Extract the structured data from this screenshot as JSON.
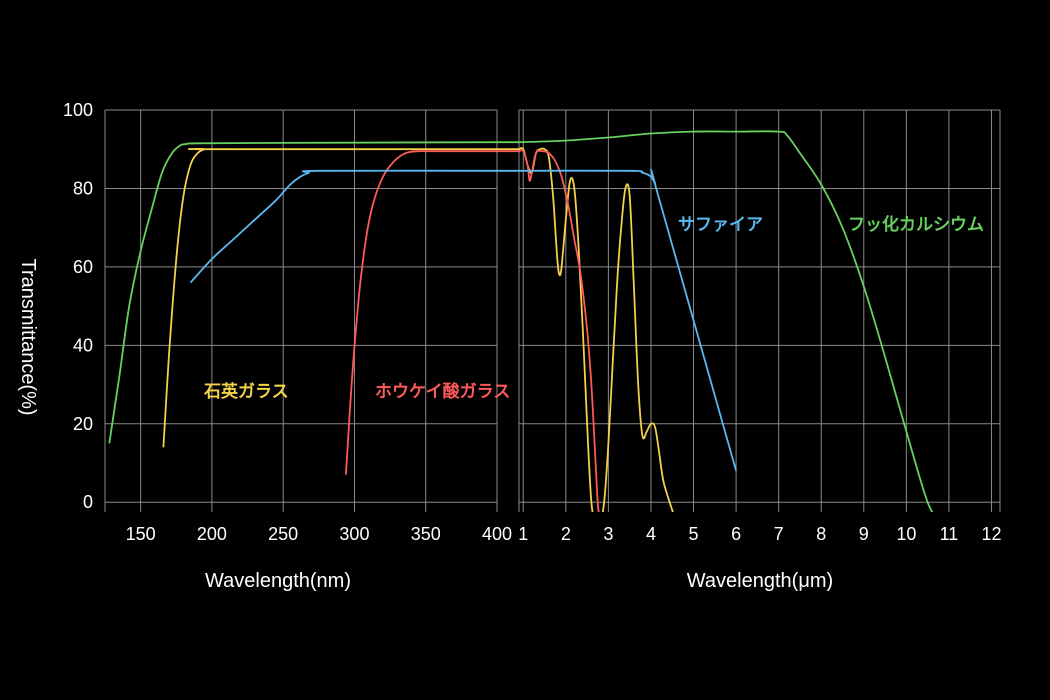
{
  "colors": {
    "background": "#000000",
    "grid": "#8a8a8a",
    "text": "#ffffff",
    "quartz": "#f2d24b",
    "borosilicate": "#ff5a5a",
    "sapphire": "#5ab8f0",
    "calcium_fluoride": "#66d15e"
  },
  "chart_data": [
    {
      "type": "line",
      "panel": "left",
      "xlabel": "Wavelength(nm)",
      "ylabel": "Transmittance(%)",
      "xlim": [
        125,
        400
      ],
      "ylim": [
        -2.5,
        100
      ],
      "xticks": [
        150,
        200,
        250,
        300,
        350,
        400
      ],
      "yticks": [
        0,
        20,
        40,
        60,
        80,
        100
      ],
      "grid": true,
      "series": [
        {
          "name": "石英ガラス",
          "color": "#f2d24b",
          "x": [
            166,
            170,
            175,
            180,
            185,
            190,
            195,
            200,
            400
          ],
          "y": [
            14,
            38,
            62,
            78,
            86,
            89,
            90,
            90,
            90
          ]
        },
        {
          "name": "ホウケイ酸ガラス",
          "color": "#ff5a5a",
          "x": [
            294,
            298,
            303,
            308,
            313,
            320,
            328,
            336,
            345,
            355,
            400
          ],
          "y": [
            7,
            30,
            52,
            67,
            76,
            83,
            87,
            89,
            89.5,
            89.5,
            89.5
          ]
        },
        {
          "name": "サファイア",
          "color": "#5ab8f0",
          "x": [
            185,
            200,
            215,
            230,
            245,
            255,
            262,
            268,
            275,
            400
          ],
          "y": [
            56,
            62,
            67,
            72,
            77,
            81,
            83,
            84,
            84.5,
            84.5
          ]
        },
        {
          "name": "フッ化カルシウム",
          "color": "#66d15e",
          "x": [
            128,
            135,
            142,
            150,
            158,
            165,
            172,
            178,
            182,
            190,
            250,
            400
          ],
          "y": [
            15,
            32,
            50,
            64,
            75,
            84,
            89,
            91,
            91.3,
            91.5,
            91.6,
            91.8
          ]
        }
      ],
      "labels": [
        {
          "series": "石英ガラス",
          "text": "石英ガラス"
        },
        {
          "series": "ホウケイ酸ガラス",
          "text": "ホウケイ酸ガラス"
        }
      ]
    },
    {
      "type": "line",
      "panel": "right",
      "xlabel": "Wavelength(μm)",
      "xlim": [
        0.9,
        12.2
      ],
      "ylim": [
        -2.5,
        100
      ],
      "xticks": [
        1,
        2,
        3,
        4,
        5,
        6,
        7,
        8,
        9,
        10,
        11,
        12
      ],
      "yticks": [
        0,
        20,
        40,
        60,
        80,
        100
      ],
      "grid": true,
      "series": [
        {
          "name": "石英ガラス",
          "color": "#f2d24b",
          "x": [
            0.9,
            1.0,
            1.1,
            1.2,
            1.3,
            1.4,
            1.5,
            1.6,
            1.7,
            1.8,
            1.85,
            1.9,
            2.0,
            2.1,
            2.2,
            2.3,
            2.4,
            2.5,
            2.6,
            2.7,
            2.8,
            2.9,
            3.0,
            3.1,
            3.2,
            3.3,
            3.4,
            3.5,
            3.6,
            3.7,
            3.8,
            3.9,
            4.0,
            4.1,
            4.2,
            4.3,
            4.5,
            4.6
          ],
          "y": [
            90,
            90,
            86,
            84,
            89,
            90,
            90,
            88,
            78,
            62,
            58,
            60,
            72,
            82,
            80,
            65,
            44,
            20,
            0,
            -5,
            -5,
            0,
            15,
            35,
            55,
            70,
            80,
            78,
            55,
            30,
            17,
            18,
            20,
            19,
            12,
            5,
            -2,
            -5
          ]
        },
        {
          "name": "ホウケイ酸ガラス",
          "color": "#ff5a5a",
          "x": [
            0.9,
            1.0,
            1.1,
            1.15,
            1.2,
            1.3,
            1.45,
            1.6,
            1.75,
            1.9,
            2.05,
            2.2,
            2.35,
            2.5,
            2.6,
            2.7,
            2.75,
            2.8
          ],
          "y": [
            89.5,
            89.5,
            86,
            82,
            84,
            89,
            89.5,
            89,
            87,
            83,
            76,
            67,
            58,
            44,
            30,
            10,
            0,
            -5
          ]
        },
        {
          "name": "サファイア",
          "color": "#5ab8f0",
          "x": [
            0.9,
            3.5,
            3.8,
            4.0,
            4.1,
            4.15,
            6.0
          ],
          "y": [
            84.5,
            84.5,
            84,
            83,
            81,
            79,
            8
          ]
        },
        {
          "name": "フッ化カルシウム",
          "color": "#66d15e",
          "x": [
            0.9,
            2.0,
            3.0,
            4.0,
            5.0,
            6.0,
            7.0,
            7.2,
            7.5,
            8.0,
            8.5,
            9.0,
            9.5,
            10.0,
            10.5,
            10.8
          ],
          "y": [
            91.8,
            92.2,
            93,
            94,
            94.5,
            94.5,
            94.5,
            93.5,
            89,
            81,
            70,
            55,
            37,
            18,
            0,
            -5
          ]
        }
      ],
      "labels": [
        {
          "series": "サファイア",
          "text": "サファイア"
        },
        {
          "series": "フッ化カルシウム",
          "text": "フッ化カルシウム"
        }
      ]
    }
  ]
}
